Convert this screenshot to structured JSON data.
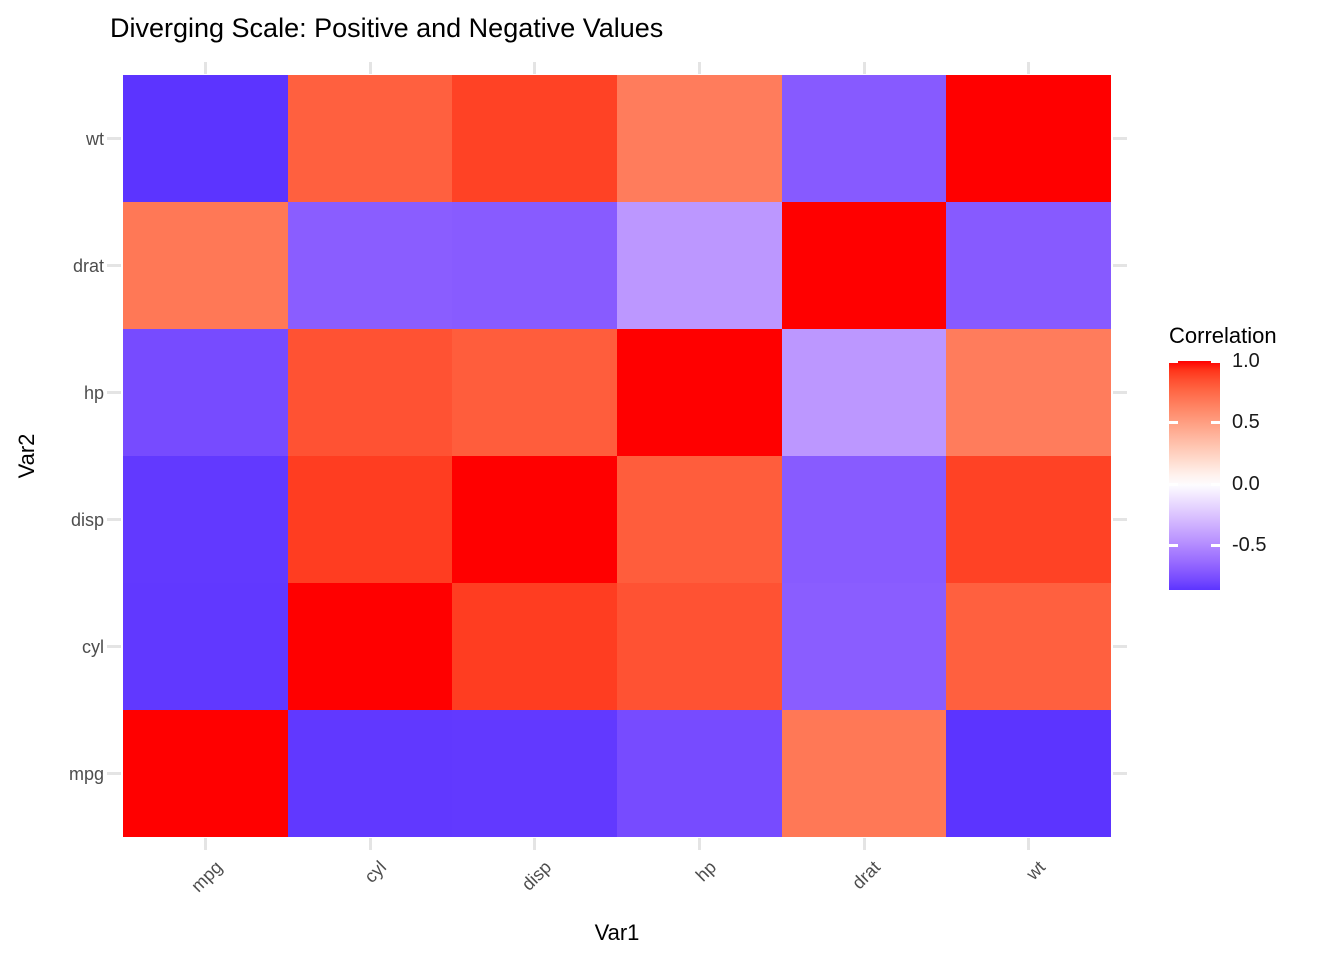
{
  "title": "Diverging Scale: Positive and Negative Values",
  "chart_data": {
    "type": "heatmap",
    "title": "Diverging Scale: Positive and Negative Values",
    "xlabel": "Var1",
    "ylabel": "Var2",
    "x_categories": [
      "mpg",
      "cyl",
      "disp",
      "hp",
      "drat",
      "wt"
    ],
    "y_categories_bottom_to_top": [
      "mpg",
      "cyl",
      "disp",
      "hp",
      "drat",
      "wt"
    ],
    "values_rows_bottom_to_top": [
      [
        1.0,
        -0.852,
        -0.848,
        -0.776,
        0.681,
        -0.868
      ],
      [
        -0.852,
        1.0,
        0.902,
        0.832,
        -0.7,
        0.782
      ],
      [
        -0.848,
        0.902,
        1.0,
        0.791,
        -0.71,
        0.888
      ],
      [
        -0.776,
        0.832,
        0.791,
        1.0,
        -0.449,
        0.659
      ],
      [
        0.681,
        -0.7,
        -0.71,
        -0.449,
        1.0,
        -0.712
      ],
      [
        -0.868,
        0.782,
        0.888,
        0.659,
        -0.712,
        1.0
      ]
    ],
    "fill_scale": {
      "type": "gradient2",
      "low": "#0000FF",
      "mid": "#FFFFFF",
      "high": "#FF0000",
      "midpoint": 0,
      "limits": [
        -0.868,
        1.0
      ],
      "interpolation": "lab"
    },
    "legend": {
      "title": "Correlation",
      "position": "right",
      "ticks": [
        {
          "label": "1.0",
          "value": 1.0
        },
        {
          "label": "0.5",
          "value": 0.5
        },
        {
          "label": "0.0",
          "value": 0.0
        },
        {
          "label": "-0.5",
          "value": -0.5
        }
      ]
    },
    "theme": {
      "background": "#FFFFFF",
      "axis_text_color": "#4D4D4D",
      "title_color": "#000000",
      "grid_stub_color": "#E4E4E4",
      "grid": "minimal-stubs-at-panel-margins",
      "x_tick_label_angle_deg": 45
    }
  }
}
